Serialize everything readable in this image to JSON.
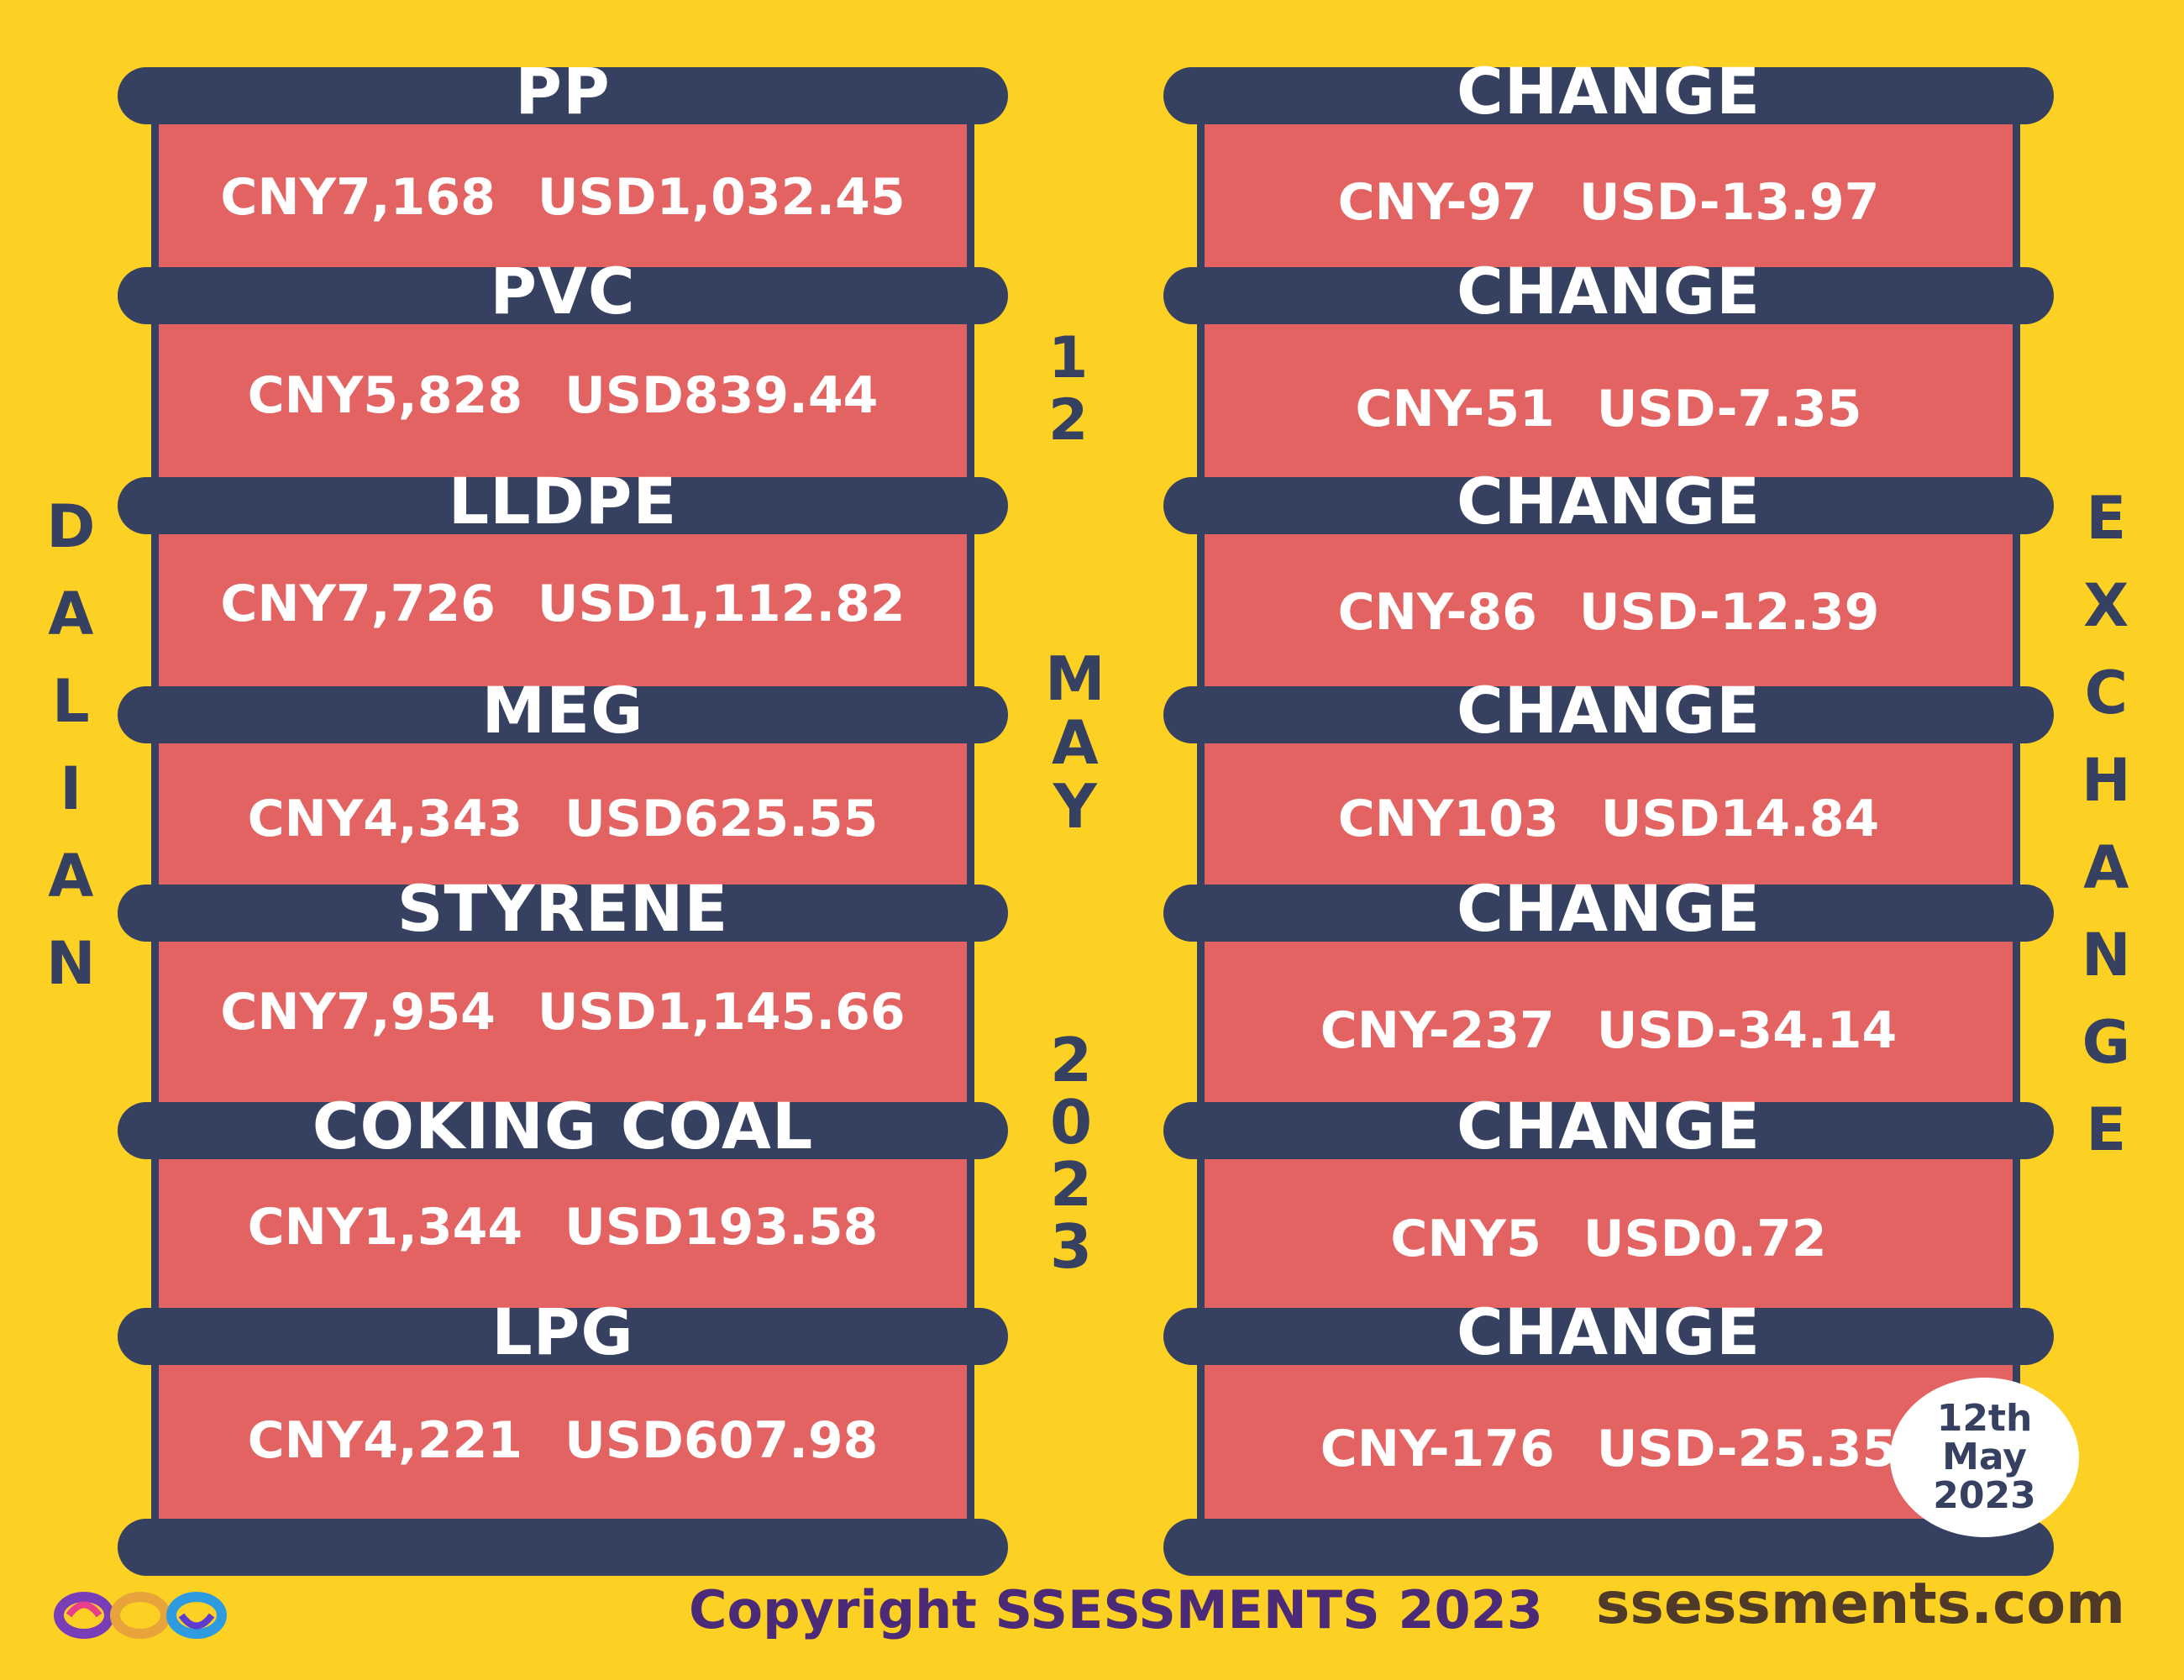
{
  "left_vertical_title": "DALIAN",
  "right_vertical_title": "EXCHANGE",
  "middle_date": {
    "day": "12",
    "month": "MAY",
    "year": "2023"
  },
  "commodities": [
    {
      "name": "PP",
      "cny": "CNY7,168",
      "usd": "USD1,032.45"
    },
    {
      "name": "PVC",
      "cny": "CNY5,828",
      "usd": "USD839.44"
    },
    {
      "name": "LLDPE",
      "cny": "CNY7,726",
      "usd": "USD1,112.82"
    },
    {
      "name": "MEG",
      "cny": "CNY4,343",
      "usd": "USD625.55"
    },
    {
      "name": "STYRENE",
      "cny": "CNY7,954",
      "usd": "USD1,145.66"
    },
    {
      "name": "COKING COAL",
      "cny": "CNY1,344",
      "usd": "USD193.58"
    },
    {
      "name": "LPG",
      "cny": "CNY4,221",
      "usd": "USD607.98"
    }
  ],
  "changes": [
    {
      "name": "CHANGE",
      "cny": "CNY-97",
      "usd": "USD-13.97"
    },
    {
      "name": "CHANGE",
      "cny": "CNY-51",
      "usd": "USD-7.35"
    },
    {
      "name": "CHANGE",
      "cny": "CNY-86",
      "usd": "USD-12.39"
    },
    {
      "name": "CHANGE",
      "cny": "CNY103",
      "usd": "USD14.84"
    },
    {
      "name": "CHANGE",
      "cny": "CNY-237",
      "usd": "USD-34.14"
    },
    {
      "name": "CHANGE",
      "cny": "CNY5",
      "usd": "USD0.72"
    },
    {
      "name": "CHANGE",
      "cny": "CNY-176",
      "usd": "USD-25.35"
    }
  ],
  "date_badge": {
    "line1": "12th",
    "line2": "May",
    "line3": "2023"
  },
  "footer": {
    "copyright": "Copyright SSESSMENTS 2023",
    "website": "ssessments.com"
  },
  "colors": {
    "background": "#fdd024",
    "bar": "#364162",
    "cell": "#e26361",
    "text": "#ffffff"
  },
  "icons": {
    "logo": "infinity-loops-logo-icon"
  }
}
